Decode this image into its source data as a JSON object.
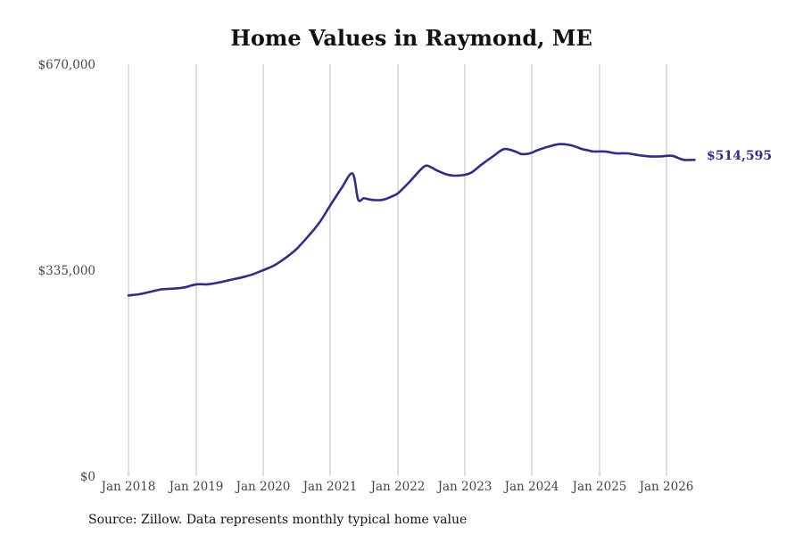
{
  "chart_data": {
    "type": "line",
    "title": "Home Values in Raymond, ME",
    "source": "Source: Zillow. Data represents monthly typical home value",
    "line_color": "#2e2e84",
    "grid": "vertical",
    "y_ticks": [
      {
        "value": 0,
        "label": "$0"
      },
      {
        "value": 335000,
        "label": "$335,000"
      },
      {
        "value": 670000,
        "label": "$670,000"
      }
    ],
    "ylim": [
      0,
      670000
    ],
    "x_ticks": [
      {
        "value": "2018-01",
        "label": "Jan 2018"
      },
      {
        "value": "2019-01",
        "label": "Jan 2019"
      },
      {
        "value": "2020-01",
        "label": "Jan 2020"
      },
      {
        "value": "2021-01",
        "label": "Jan 2021"
      },
      {
        "value": "2022-01",
        "label": "Jan 2022"
      },
      {
        "value": "2023-01",
        "label": "Jan 2023"
      },
      {
        "value": "2024-01",
        "label": "Jan 2024"
      },
      {
        "value": "2025-01",
        "label": "Jan 2025"
      },
      {
        "value": "2026-01",
        "label": "Jan 2026"
      }
    ],
    "xlim": [
      "2018-01",
      "2026-06"
    ],
    "end_label": "$514,595",
    "series": [
      {
        "x": [
          "2018-01",
          "2018-03",
          "2018-05",
          "2018-07",
          "2018-09",
          "2018-11",
          "2019-01",
          "2019-03",
          "2019-05",
          "2019-07",
          "2019-09",
          "2019-11",
          "2020-01",
          "2020-03",
          "2020-05",
          "2020-07",
          "2020-09",
          "2020-11",
          "2021-01",
          "2021-03",
          "2021-05",
          "2021-06",
          "2021-07",
          "2021-08",
          "2021-09",
          "2021-10",
          "2021-11",
          "2021-12",
          "2022-01",
          "2022-03",
          "2022-05",
          "2022-06",
          "2022-07",
          "2022-08",
          "2022-10",
          "2022-12",
          "2023-02",
          "2023-04",
          "2023-06",
          "2023-08",
          "2023-10",
          "2023-11",
          "2023-12",
          "2024-01",
          "2024-02",
          "2024-04",
          "2024-06",
          "2024-08",
          "2024-10",
          "2024-11",
          "2024-12",
          "2025-02",
          "2025-04",
          "2025-06",
          "2025-08",
          "2025-10",
          "2025-12",
          "2026-02",
          "2026-04",
          "2026-06"
        ],
        "y": [
          294000,
          296000,
          300000,
          304000,
          305000,
          307000,
          312000,
          312000,
          315000,
          319000,
          323000,
          328000,
          335000,
          343000,
          355000,
          370000,
          390000,
          412000,
          440000,
          468000,
          492000,
          450000,
          452000,
          450000,
          449000,
          449000,
          451000,
          455000,
          460000,
          478000,
          498000,
          505000,
          502000,
          497000,
          490000,
          489000,
          493000,
          507000,
          520000,
          532000,
          528000,
          524000,
          524000,
          526000,
          530000,
          536000,
          540000,
          538000,
          532000,
          530000,
          528000,
          528000,
          525000,
          525000,
          522000,
          520000,
          520000,
          521000,
          514595,
          514595
        ]
      }
    ]
  }
}
